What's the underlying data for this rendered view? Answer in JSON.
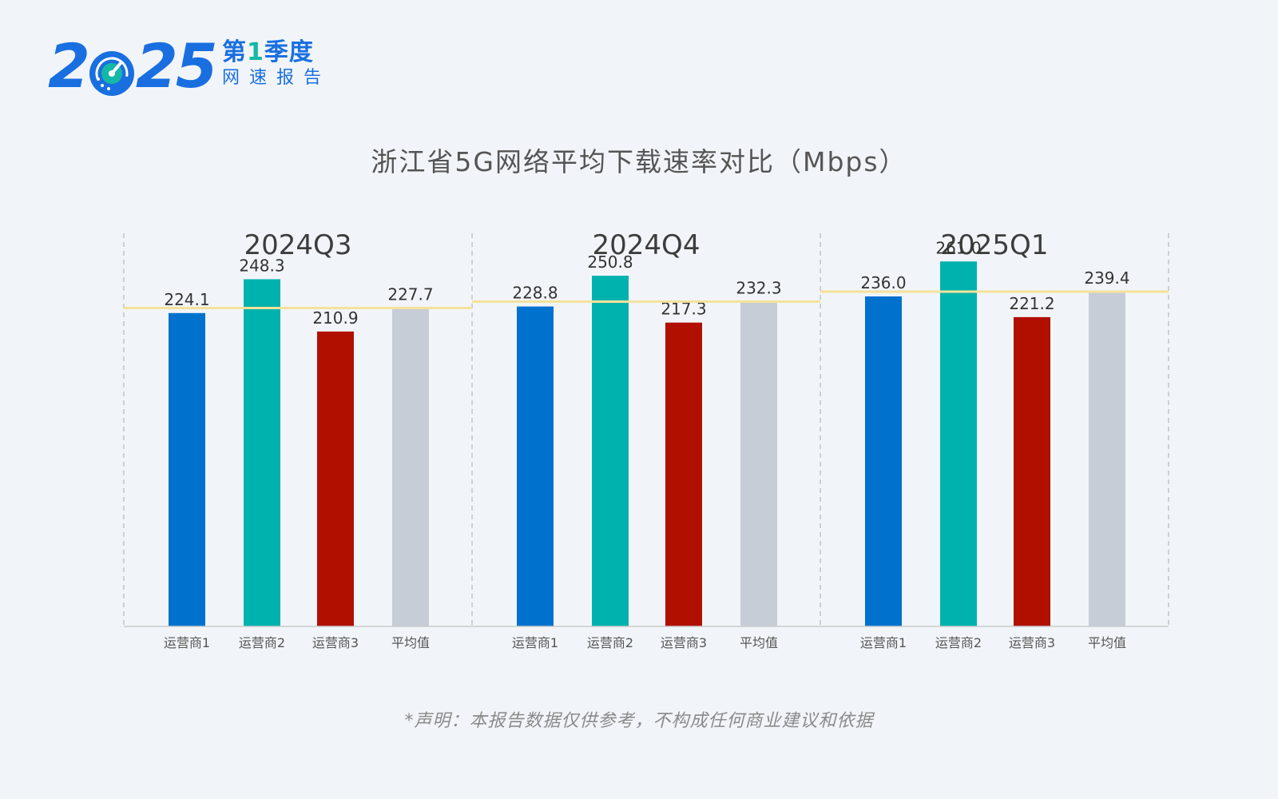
{
  "logo": {
    "year_prefix": "2",
    "year_suffix": "25",
    "line1_pre": "第",
    "line1_num": "1",
    "line1_post": "季度",
    "line2": "网速报告",
    "icon": "speedometer-icon"
  },
  "colors": {
    "operator1": "#0072CE",
    "operator2": "#00B2AE",
    "operator3": "#B10F00",
    "average": "#C7CDD7",
    "avg_line": "#F5E29A",
    "brand": "#1A6FE0",
    "accent": "#14B8A6"
  },
  "disclaimer": "*声明：本报告数据仅供参考，不构成任何商业建议和依据",
  "chart_data": {
    "type": "bar",
    "title": "浙江省5G网络平均下载速率对比（Mbps）",
    "categories": [
      "运营商1",
      "运营商2",
      "运营商3",
      "平均值"
    ],
    "ylim": [
      0,
      400
    ],
    "grid": false,
    "legend": "none",
    "groups": [
      {
        "name": "2024Q3",
        "values": [
          224.1,
          248.3,
          210.9,
          227.7
        ],
        "labels": [
          "224.1",
          "248.3",
          "210.9",
          "227.7"
        ]
      },
      {
        "name": "2024Q4",
        "values": [
          228.8,
          250.8,
          217.3,
          232.3
        ],
        "labels": [
          "228.8",
          "250.8",
          "217.3",
          "232.3"
        ]
      },
      {
        "name": "2025Q1",
        "values": [
          236.0,
          261.0,
          221.2,
          239.4
        ],
        "labels": [
          "236.0",
          "261.0",
          "221.2",
          "239.4"
        ]
      }
    ],
    "average_reference_line": true
  }
}
